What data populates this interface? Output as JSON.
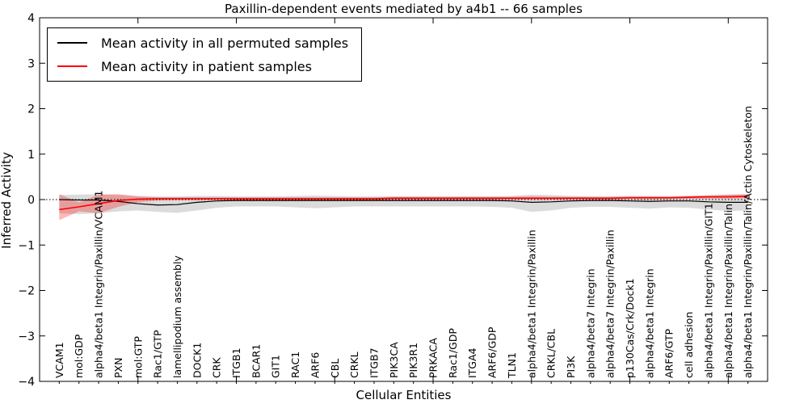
{
  "title": "Paxillin-dependent events mediated by a4b1 -- 66 samples",
  "legend": {
    "entries": [
      {
        "label": "Mean activity in all permuted samples",
        "color": "#000000"
      },
      {
        "label": "Mean activity in patient samples",
        "color": "#ff0000"
      }
    ]
  },
  "axes": {
    "y_tick_labels": [
      "-4",
      "-3",
      "-2",
      "-1",
      "0",
      "1",
      "2",
      "3",
      "4"
    ],
    "x_major_ticks_data": [
      5,
      10,
      15,
      20,
      25,
      30,
      35
    ]
  },
  "chart_data": {
    "type": "line",
    "title": "Paxillin-dependent events mediated by a4b1 -- 66 samples",
    "xlabel": "Cellular Entities",
    "ylabel": "Inferred Activity",
    "ylim": [
      -4,
      4
    ],
    "xlim": [
      0,
      37
    ],
    "grid": false,
    "legend_position": "upper left",
    "zero_reference_line": true,
    "categories": [
      "VCAM1",
      "mol:GDP",
      "alpha4/beta1 Integrin/Paxillin/VCAM1",
      "PXN",
      "mol:GTP",
      "Rac1/GTP",
      "lamellipodium assembly",
      "DOCK1",
      "CRK",
      "ITGB1",
      "BCAR1",
      "GIT1",
      "RAC1",
      "ARF6",
      "CBL",
      "CRKL",
      "ITGB7",
      "PIK3CA",
      "PIK3R1",
      "PRKACA",
      "Rac1/GDP",
      "ITGA4",
      "ARF6/GDP",
      "TLN1",
      "alpha4/beta1 Integrin/Paxillin",
      "CRKL/CBL",
      "PI3K",
      "alpha4/beta7 Integrin",
      "alpha4/beta7 Integrin/Paxillin",
      "p130Cas/Crk/Dock1",
      "alpha4/beta1 Integrin",
      "ARF6/GTP",
      "cell adhesion",
      "alpha4/beta1 Integrin/Paxillin/GIT1",
      "alpha4/beta1 Integrin/Paxillin/Talin",
      "alpha4/beta1 Integrin/Paxillin/Talin/Actin Cytoskeleton"
    ],
    "series": [
      {
        "name": "Mean activity in all permuted samples",
        "color": "#000000",
        "line_width": 1.2,
        "band_color": "#999999",
        "band_opacity": 0.35,
        "values": [
          0.0,
          -0.01,
          -0.01,
          -0.04,
          -0.09,
          -0.12,
          -0.11,
          -0.06,
          -0.03,
          -0.02,
          -0.02,
          -0.02,
          -0.02,
          -0.02,
          -0.02,
          -0.02,
          -0.02,
          -0.02,
          -0.02,
          -0.02,
          -0.02,
          -0.02,
          -0.02,
          -0.03,
          -0.06,
          -0.05,
          -0.03,
          -0.02,
          -0.02,
          -0.03,
          -0.04,
          -0.03,
          -0.03,
          -0.05,
          -0.06,
          -0.06
        ],
        "band_hi": [
          0.1,
          0.11,
          0.12,
          0.1,
          0.08,
          0.07,
          0.07,
          0.08,
          0.08,
          0.07,
          0.07,
          0.07,
          0.08,
          0.09,
          0.08,
          0.07,
          0.07,
          0.07,
          0.07,
          0.07,
          0.07,
          0.07,
          0.07,
          0.08,
          0.11,
          0.1,
          0.08,
          0.07,
          0.07,
          0.08,
          0.08,
          0.07,
          0.08,
          0.1,
          0.11,
          0.11
        ],
        "band_lo": [
          -0.3,
          -0.32,
          -0.3,
          -0.26,
          -0.24,
          -0.27,
          -0.29,
          -0.24,
          -0.18,
          -0.15,
          -0.15,
          -0.15,
          -0.17,
          -0.19,
          -0.17,
          -0.15,
          -0.15,
          -0.15,
          -0.15,
          -0.15,
          -0.15,
          -0.15,
          -0.16,
          -0.18,
          -0.27,
          -0.24,
          -0.18,
          -0.16,
          -0.16,
          -0.18,
          -0.2,
          -0.17,
          -0.18,
          -0.22,
          -0.25,
          -0.24
        ]
      },
      {
        "name": "Mean activity in patient samples",
        "color": "#ff0000",
        "line_width": 1.6,
        "band_color": "#ff0000",
        "band_opacity": 0.28,
        "values": [
          -0.22,
          -0.16,
          -0.09,
          -0.02,
          0.01,
          0.02,
          0.02,
          0.02,
          0.02,
          0.02,
          0.02,
          0.02,
          0.02,
          0.02,
          0.02,
          0.02,
          0.02,
          0.03,
          0.03,
          0.03,
          0.03,
          0.03,
          0.03,
          0.03,
          0.03,
          0.03,
          0.03,
          0.03,
          0.03,
          0.04,
          0.04,
          0.04,
          0.05,
          0.06,
          0.06,
          0.07
        ],
        "band_hi": [
          0.12,
          -0.06,
          0.11,
          0.12,
          0.07,
          0.05,
          0.05,
          0.05,
          0.05,
          0.05,
          0.05,
          0.05,
          0.05,
          0.05,
          0.05,
          0.05,
          0.05,
          0.06,
          0.06,
          0.06,
          0.06,
          0.06,
          0.06,
          0.06,
          0.07,
          0.06,
          0.06,
          0.06,
          0.06,
          0.07,
          0.07,
          0.07,
          0.08,
          0.09,
          0.11,
          0.12
        ],
        "band_lo": [
          -0.45,
          -0.26,
          -0.3,
          -0.16,
          -0.06,
          -0.02,
          -0.01,
          -0.01,
          -0.01,
          -0.01,
          -0.01,
          -0.01,
          -0.01,
          -0.01,
          -0.01,
          -0.01,
          -0.01,
          0.0,
          0.0,
          0.0,
          0.0,
          0.0,
          0.0,
          0.0,
          0.0,
          0.0,
          0.0,
          0.0,
          0.0,
          0.01,
          0.01,
          0.01,
          0.02,
          0.02,
          0.02,
          0.03
        ]
      }
    ]
  }
}
